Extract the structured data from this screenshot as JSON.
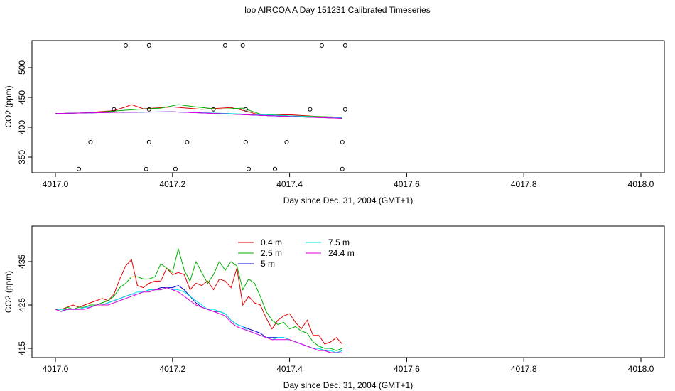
{
  "title": "loo AIRCOA A  Day 151231  Calibrated Timeseries",
  "chart_data": [
    {
      "type": "line",
      "xlabel": "Day since Dec. 31, 2004 (GMT+1)",
      "ylabel": "CO2 (ppm)",
      "xlim": [
        4017.0,
        4018.0
      ],
      "ylim": [
        325,
        540
      ],
      "xticks": [
        "4017.0",
        "4017.2",
        "4017.4",
        "4017.6",
        "4017.8",
        "4018.0"
      ],
      "yticks": [
        "350",
        "400",
        "450",
        "500"
      ],
      "series": [
        {
          "color": "#e00000",
          "x": [
            4017.0,
            4017.05,
            4017.1,
            4017.12,
            4017.13,
            4017.15,
            4017.2,
            4017.25,
            4017.3,
            4017.33,
            4017.35,
            4017.4,
            4017.45,
            4017.49
          ],
          "values": [
            423,
            424,
            428,
            434,
            438,
            431,
            434,
            430,
            433,
            426,
            420,
            421,
            418,
            416
          ]
        },
        {
          "color": "#00b000",
          "x": [
            4017.0,
            4017.05,
            4017.1,
            4017.14,
            4017.18,
            4017.21,
            4017.24,
            4017.28,
            4017.32,
            4017.35,
            4017.4,
            4017.45,
            4017.49
          ],
          "values": [
            423,
            424,
            427,
            430,
            432,
            438,
            434,
            430,
            432,
            422,
            419,
            418,
            417
          ]
        },
        {
          "color": "#00e5e5",
          "x": [
            4017.0,
            4017.1,
            4017.2,
            4017.3,
            4017.4,
            4017.49
          ],
          "values": [
            423,
            425,
            426,
            423,
            419,
            416
          ]
        },
        {
          "color": "#0000cc",
          "x": [
            4017.0,
            4017.1,
            4017.2,
            4017.3,
            4017.4,
            4017.49
          ],
          "values": [
            423,
            425,
            426,
            422,
            418,
            415
          ]
        },
        {
          "color": "#e000e0",
          "x": [
            4017.0,
            4017.1,
            4017.2,
            4017.3,
            4017.4,
            4017.49
          ],
          "values": [
            423,
            425,
            426,
            422,
            418,
            415
          ]
        }
      ],
      "points": {
        "x": [
          4017.04,
          4017.06,
          4017.1,
          4017.12,
          4017.155,
          4017.16,
          4017.16,
          4017.16,
          4017.205,
          4017.225,
          4017.27,
          4017.29,
          4017.32,
          4017.325,
          4017.325,
          4017.33,
          4017.375,
          4017.395,
          4017.435,
          4017.455,
          4017.49,
          4017.49,
          4017.495,
          4017.495
        ],
        "y": [
          330,
          375,
          430,
          537,
          330,
          375,
          430,
          537,
          330,
          375,
          430,
          537,
          537,
          430,
          375,
          330,
          330,
          375,
          430,
          537,
          330,
          375,
          430,
          537
        ]
      }
    },
    {
      "type": "line",
      "xlabel": "Day since Dec. 31, 2004 (GMT+1)",
      "ylabel": "CO2 (ppm)",
      "xlim": [
        4017.0,
        4018.0
      ],
      "ylim": [
        413,
        441
      ],
      "xticks": [
        "4017.0",
        "4017.2",
        "4017.4",
        "4017.6",
        "4017.8",
        "4018.0"
      ],
      "yticks": [
        "415",
        "425",
        "435"
      ],
      "legend": {
        "placement": "top",
        "entries": [
          {
            "label": "0.4 m",
            "color": "#e00000"
          },
          {
            "label": "2.5 m",
            "color": "#00b000"
          },
          {
            "label": "5 m",
            "color": "#0000cc"
          },
          {
            "label": "7.5 m",
            "color": "#00e5e5"
          },
          {
            "label": "24.4 m",
            "color": "#e000e0"
          }
        ]
      },
      "series": [
        {
          "name": "0.4 m",
          "color": "#e00000",
          "x": [
            4017.0,
            4017.01,
            4017.02,
            4017.03,
            4017.04,
            4017.05,
            4017.06,
            4017.07,
            4017.08,
            4017.09,
            4017.1,
            4017.11,
            4017.12,
            4017.13,
            4017.14,
            4017.15,
            4017.16,
            4017.17,
            4017.18,
            4017.19,
            4017.2,
            4017.21,
            4017.22,
            4017.23,
            4017.24,
            4017.25,
            4017.26,
            4017.27,
            4017.28,
            4017.29,
            4017.3,
            4017.31,
            4017.32,
            4017.33,
            4017.34,
            4017.35,
            4017.36,
            4017.37,
            4017.38,
            4017.39,
            4017.4,
            4017.41,
            4017.42,
            4017.43,
            4017.44,
            4017.45,
            4017.46,
            4017.47,
            4017.48,
            4017.49
          ],
          "values": [
            424,
            424,
            424.5,
            425,
            424.5,
            425,
            425.5,
            426,
            426.5,
            426,
            427.5,
            431,
            434,
            435.5,
            429.5,
            429,
            430,
            430.5,
            430.5,
            433.5,
            432,
            432.5,
            432,
            428.5,
            430,
            429.5,
            430.5,
            428.5,
            431,
            430.5,
            429,
            433.5,
            425,
            427,
            425.5,
            425,
            422,
            419.5,
            421.5,
            422.5,
            423,
            421,
            419.5,
            421.5,
            418,
            418,
            416,
            416.5,
            417.5,
            416
          ]
        },
        {
          "name": "2.5 m",
          "color": "#00b000",
          "x": [
            4017.0,
            4017.01,
            4017.02,
            4017.03,
            4017.04,
            4017.05,
            4017.06,
            4017.07,
            4017.08,
            4017.09,
            4017.1,
            4017.11,
            4017.12,
            4017.13,
            4017.14,
            4017.15,
            4017.16,
            4017.17,
            4017.18,
            4017.19,
            4017.2,
            4017.21,
            4017.22,
            4017.23,
            4017.24,
            4017.25,
            4017.26,
            4017.27,
            4017.28,
            4017.29,
            4017.3,
            4017.31,
            4017.32,
            4017.33,
            4017.34,
            4017.35,
            4017.36,
            4017.37,
            4017.38,
            4017.39,
            4017.4,
            4017.41,
            4017.42,
            4017.43,
            4017.44,
            4017.45,
            4017.46,
            4017.47,
            4017.48,
            4017.49
          ],
          "values": [
            424,
            423.5,
            424.5,
            424,
            424.5,
            424.5,
            425,
            425,
            425.5,
            426,
            427,
            429,
            430,
            431.5,
            431.5,
            431,
            431,
            431.5,
            434.5,
            433.5,
            432.5,
            438,
            433,
            430.5,
            435,
            432.5,
            430,
            432,
            435,
            433,
            435,
            434,
            428.5,
            431,
            430,
            427,
            423.5,
            421.5,
            420.5,
            421,
            419.5,
            420,
            419,
            418.5,
            416.5,
            415.5,
            415,
            415,
            414.5,
            415
          ]
        },
        {
          "name": "5 m",
          "color": "#0000cc",
          "x": [
            4017.0,
            4017.01,
            4017.02,
            4017.03,
            4017.04,
            4017.05,
            4017.06,
            4017.07,
            4017.08,
            4017.09,
            4017.1,
            4017.11,
            4017.12,
            4017.13,
            4017.14,
            4017.15,
            4017.16,
            4017.17,
            4017.18,
            4017.19,
            4017.2,
            4017.21,
            4017.22,
            4017.23,
            4017.24,
            4017.25,
            4017.26,
            4017.27,
            4017.28,
            4017.29,
            4017.3,
            4017.31,
            4017.32,
            4017.33,
            4017.34,
            4017.35,
            4017.36,
            4017.37,
            4017.38,
            4017.39,
            4017.4,
            4017.41,
            4017.42,
            4017.43,
            4017.44,
            4017.45,
            4017.46,
            4017.47,
            4017.48,
            4017.49
          ],
          "values": [
            424,
            423.5,
            424,
            424,
            424,
            424.5,
            424.5,
            425,
            425,
            425.5,
            426,
            426.5,
            427,
            427.5,
            427.5,
            428,
            428.5,
            428.5,
            429,
            429,
            429,
            429.5,
            428.5,
            427,
            425.5,
            424.5,
            424,
            423.5,
            423.5,
            423,
            421.5,
            420.5,
            420,
            419.5,
            419,
            418.5,
            417.5,
            417.5,
            417.5,
            417.5,
            417,
            416.5,
            416,
            415.5,
            415,
            415,
            414.5,
            414,
            414,
            414.5
          ]
        },
        {
          "name": "7.5 m",
          "color": "#00e5e5",
          "x": [
            4017.0,
            4017.01,
            4017.02,
            4017.03,
            4017.04,
            4017.05,
            4017.06,
            4017.07,
            4017.08,
            4017.09,
            4017.1,
            4017.11,
            4017.12,
            4017.13,
            4017.14,
            4017.15,
            4017.16,
            4017.17,
            4017.18,
            4017.19,
            4017.2,
            4017.21,
            4017.22,
            4017.23,
            4017.24,
            4017.25,
            4017.26,
            4017.27,
            4017.28,
            4017.29,
            4017.3,
            4017.31,
            4017.32,
            4017.33,
            4017.34,
            4017.35,
            4017.36,
            4017.37,
            4017.38,
            4017.39,
            4017.4,
            4017.41,
            4017.42,
            4017.43,
            4017.44,
            4017.45,
            4017.46,
            4017.47,
            4017.48,
            4017.49
          ],
          "values": [
            424,
            424,
            424,
            424,
            424,
            424.5,
            424.5,
            425,
            425,
            425.5,
            426,
            426.5,
            427,
            427.5,
            428,
            428,
            428.5,
            428.5,
            428.5,
            429,
            428.5,
            428.5,
            428,
            427,
            426,
            425,
            424,
            424,
            423.5,
            423,
            421.5,
            420.5,
            420,
            419,
            418.5,
            418,
            417.5,
            417,
            417.5,
            417.5,
            417,
            416.5,
            416,
            415.5,
            415,
            415,
            414.5,
            414.5,
            414,
            414.5
          ]
        },
        {
          "name": "24.4 m",
          "color": "#e000e0",
          "x": [
            4017.0,
            4017.01,
            4017.02,
            4017.03,
            4017.04,
            4017.05,
            4017.06,
            4017.07,
            4017.08,
            4017.09,
            4017.1,
            4017.11,
            4017.12,
            4017.13,
            4017.14,
            4017.15,
            4017.16,
            4017.17,
            4017.18,
            4017.19,
            4017.2,
            4017.21,
            4017.22,
            4017.23,
            4017.24,
            4017.25,
            4017.26,
            4017.27,
            4017.28,
            4017.29,
            4017.3,
            4017.31,
            4017.32,
            4017.33,
            4017.34,
            4017.35,
            4017.36,
            4017.37,
            4017.38,
            4017.39,
            4017.4,
            4017.41,
            4017.42,
            4017.43,
            4017.44,
            4017.45,
            4017.46,
            4017.47,
            4017.48,
            4017.49
          ],
          "values": [
            424,
            423.5,
            424,
            424,
            424,
            424,
            424.5,
            425,
            425,
            425,
            425.5,
            426,
            426.5,
            427,
            427.5,
            428,
            428,
            428.5,
            428.5,
            429,
            428.5,
            428,
            427,
            426,
            425,
            424.5,
            424,
            423.5,
            423,
            422.5,
            421,
            420,
            419.5,
            419,
            418.5,
            418,
            417.5,
            417,
            417,
            417,
            417,
            416.5,
            416,
            415.5,
            415,
            414.5,
            414.5,
            414,
            414,
            414
          ]
        }
      ]
    }
  ]
}
